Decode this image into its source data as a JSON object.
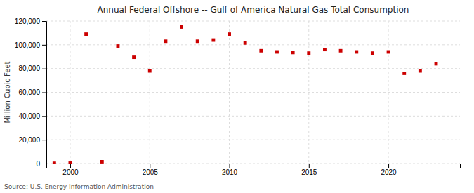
{
  "chart_data": {
    "type": "scatter",
    "title": "Annual Federal Offshore -- Gulf of America Natural Gas Total Consumption",
    "ylabel": "Million Cubic Feet",
    "source": "Source: U.S. Energy Information Administration",
    "x": [
      1999,
      2000,
      2001,
      2002,
      2003,
      2004,
      2005,
      2006,
      2007,
      2008,
      2009,
      2010,
      2011,
      2012,
      2013,
      2014,
      2015,
      2016,
      2017,
      2018,
      2019,
      2020,
      2021,
      2022,
      2023
    ],
    "values": [
      200,
      300,
      109000,
      1500,
      99000,
      89500,
      78000,
      103000,
      115000,
      103000,
      104000,
      109000,
      101500,
      95000,
      94000,
      93500,
      93000,
      96000,
      95000,
      94000,
      93000,
      94000,
      76000,
      78000,
      84000
    ],
    "color": "#cc0000",
    "marker": "square",
    "xlim": [
      1998.5,
      2024.5
    ],
    "xticks": [
      2000,
      2005,
      2010,
      2015,
      2020
    ],
    "ylim": [
      0,
      120000
    ],
    "yticks": [
      0,
      {
        "value": 20000,
        "label": "20,000"
      },
      {
        "value": 40000,
        "label": "40,000"
      },
      {
        "value": 60000,
        "label": "60,000"
      },
      {
        "value": 80000,
        "label": "80,000"
      },
      {
        "value": 100000,
        "label": "100,000"
      },
      {
        "value": 120000,
        "label": "120,000"
      }
    ],
    "grid": true
  }
}
